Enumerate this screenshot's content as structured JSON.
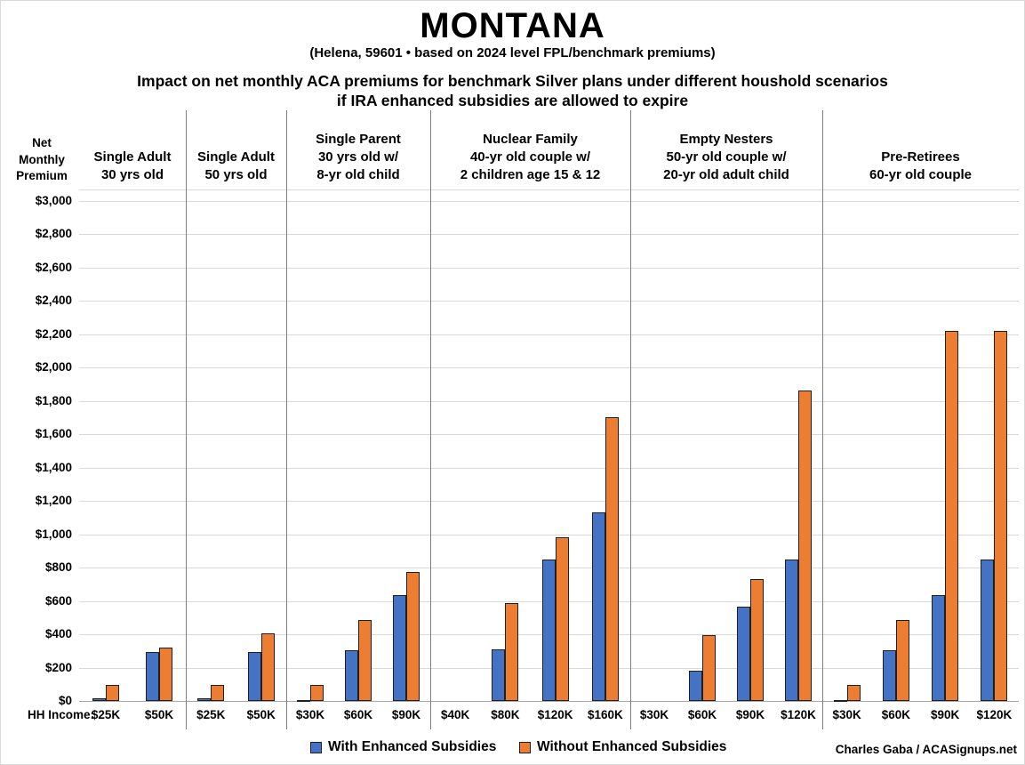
{
  "chart_data": {
    "type": "bar",
    "title": "MONTANA",
    "subtitle": "(Helena, 59601 • based on 2024 level FPL/benchmark premiums)",
    "heading": "Impact on net monthly ACA premiums for benchmark Silver plans under different houshold scenarios\nif IRA enhanced subsidies are allowed to expire",
    "ylabel": "Net\nMonthly\nPremium",
    "ylim": [
      0,
      3000
    ],
    "ytick_step": 200,
    "ytick_prefix": "$",
    "grid": true,
    "legend_position": "bottom",
    "xaxis_row_label": "HH Income:",
    "colors": {
      "with_enhanced": "#4472C4",
      "without_enhanced": "#ED7D31",
      "bar_outline": "#1f1f1f"
    },
    "legend": [
      {
        "label": "With Enhanced Subsidies",
        "color": "#4472C4"
      },
      {
        "label": "Without Enhanced Subsidies",
        "color": "#ED7D31"
      }
    ],
    "groups": [
      {
        "label": "Single Adult\n30 yrs old",
        "categories": [
          "$25K",
          "$50K"
        ],
        "series": [
          {
            "name": "With Enhanced Subsidies",
            "values": [
              20,
              295
            ]
          },
          {
            "name": "Without Enhanced Subsidies",
            "values": [
              100,
              320
            ]
          }
        ]
      },
      {
        "label": "Single Adult\n50 yrs old",
        "categories": [
          "$25K",
          "$50K"
        ],
        "series": [
          {
            "name": "With Enhanced Subsidies",
            "values": [
              20,
              295
            ]
          },
          {
            "name": "Without Enhanced Subsidies",
            "values": [
              100,
              405
            ]
          }
        ]
      },
      {
        "label": "Single Parent\n30 yrs old w/\n8-yr old child",
        "categories": [
          "$30K",
          "$60K",
          "$90K"
        ],
        "series": [
          {
            "name": "With Enhanced Subsidies",
            "values": [
              5,
              305,
              635
            ]
          },
          {
            "name": "Without Enhanced Subsidies",
            "values": [
              100,
              485,
              775
            ]
          }
        ]
      },
      {
        "label": "Nuclear Family\n40-yr old couple w/\n2 children age 15 & 12",
        "categories": [
          "$40K",
          "$80K",
          "$120K",
          "$160K"
        ],
        "series": [
          {
            "name": "With Enhanced Subsidies",
            "values": [
              0,
              310,
              850,
              1130
            ]
          },
          {
            "name": "Without Enhanced Subsidies",
            "values": [
              0,
              590,
              980,
              1700
            ]
          }
        ]
      },
      {
        "label": "Empty Nesters\n50-yr old couple w/\n20-yr old adult child",
        "categories": [
          "$30K",
          "$60K",
          "$90K",
          "$120K"
        ],
        "series": [
          {
            "name": "With Enhanced Subsidies",
            "values": [
              0,
              185,
              565,
              850
            ]
          },
          {
            "name": "Without Enhanced Subsidies",
            "values": [
              0,
              395,
              730,
              1860
            ]
          }
        ]
      },
      {
        "label": "Pre-Retirees\n60-yr old couple",
        "categories": [
          "$30K",
          "$60K",
          "$90K",
          "$120K"
        ],
        "series": [
          {
            "name": "With Enhanced Subsidies",
            "values": [
              5,
              305,
              635,
              850
            ]
          },
          {
            "name": "Without Enhanced Subsidies",
            "values": [
              100,
              485,
              2220,
              2220
            ]
          }
        ]
      }
    ],
    "credit": "Charles Gaba / ACASignups.net"
  }
}
